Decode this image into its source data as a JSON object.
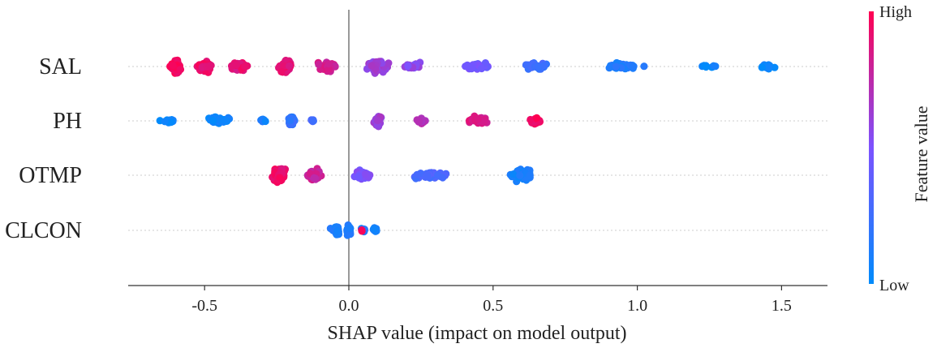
{
  "chart_data": {
    "type": "scatter",
    "subtype": "shap-beeswarm",
    "xlabel": "SHAP value (impact on model output)",
    "xlim": [
      -0.78,
      1.66
    ],
    "xticks": [
      -0.5,
      0.0,
      0.5,
      1.0,
      1.5
    ],
    "xtick_labels": [
      "-0.5",
      "0.0",
      "0.5",
      "1.0",
      "1.5"
    ],
    "zero_line": true,
    "grid": false,
    "features": [
      "SAL",
      "PH",
      "OTMP",
      "CLCON"
    ],
    "colorbar": {
      "title": "Feature value",
      "high_label": "High",
      "low_label": "Low",
      "high_color": "#ff0051",
      "low_color": "#008bfb"
    },
    "series": [
      {
        "feature": "SAL",
        "groups": [
          {
            "x": -0.6,
            "x_spread": 0.03,
            "count": 70,
            "color_value": 0.97
          },
          {
            "x": -0.5,
            "x_spread": 0.04,
            "count": 55,
            "color_value": 0.93
          },
          {
            "x": -0.38,
            "x_spread": 0.06,
            "count": 40,
            "color_value": 0.9
          },
          {
            "x": -0.22,
            "x_spread": 0.04,
            "count": 75,
            "color_value": 0.9
          },
          {
            "x": -0.08,
            "x_spread": 0.06,
            "count": 40,
            "color_value": 0.82
          },
          {
            "x": 0.1,
            "x_spread": 0.06,
            "count": 55,
            "color_value": 0.62
          },
          {
            "x": 0.22,
            "x_spread": 0.05,
            "count": 30,
            "color_value": 0.55
          },
          {
            "x": 0.45,
            "x_spread": 0.08,
            "count": 30,
            "color_value": 0.45
          },
          {
            "x": 0.65,
            "x_spread": 0.1,
            "count": 28,
            "color_value": 0.25
          },
          {
            "x": 0.95,
            "x_spread": 0.12,
            "count": 30,
            "color_value": 0.12
          },
          {
            "x": 1.25,
            "x_spread": 0.06,
            "count": 8,
            "color_value": 0.06
          },
          {
            "x": 1.45,
            "x_spread": 0.05,
            "count": 16,
            "color_value": 0.05
          }
        ]
      },
      {
        "feature": "PH",
        "groups": [
          {
            "x": -0.62,
            "x_spread": 0.05,
            "count": 14,
            "color_value": 0.04
          },
          {
            "x": -0.45,
            "x_spread": 0.06,
            "count": 35,
            "color_value": 0.07
          },
          {
            "x": -0.3,
            "x_spread": 0.03,
            "count": 8,
            "color_value": 0.1
          },
          {
            "x": -0.2,
            "x_spread": 0.02,
            "count": 45,
            "color_value": 0.2
          },
          {
            "x": -0.13,
            "x_spread": 0.02,
            "count": 6,
            "color_value": 0.28
          },
          {
            "x": 0.1,
            "x_spread": 0.02,
            "count": 45,
            "color_value": 0.62
          },
          {
            "x": 0.25,
            "x_spread": 0.04,
            "count": 12,
            "color_value": 0.72
          },
          {
            "x": 0.45,
            "x_spread": 0.06,
            "count": 40,
            "color_value": 0.85
          },
          {
            "x": 0.65,
            "x_spread": 0.04,
            "count": 22,
            "color_value": 0.96
          }
        ]
      },
      {
        "feature": "OTMP",
        "groups": [
          {
            "x": -0.24,
            "x_spread": 0.04,
            "count": 90,
            "color_value": 0.92
          },
          {
            "x": -0.12,
            "x_spread": 0.04,
            "count": 55,
            "color_value": 0.78
          },
          {
            "x": 0.05,
            "x_spread": 0.06,
            "count": 40,
            "color_value": 0.5
          },
          {
            "x": 0.28,
            "x_spread": 0.1,
            "count": 35,
            "color_value": 0.3
          },
          {
            "x": 0.6,
            "x_spread": 0.06,
            "count": 55,
            "color_value": 0.1
          }
        ]
      },
      {
        "feature": "CLCON",
        "groups": [
          {
            "x": -0.05,
            "x_spread": 0.03,
            "count": 10,
            "color_value": 0.12
          },
          {
            "x": -0.04,
            "x_spread": 0.012,
            "count": 45,
            "color_value": 0.1
          },
          {
            "x": 0.0,
            "x_spread": 0.012,
            "count": 40,
            "color_value": 0.1
          },
          {
            "x": 0.05,
            "x_spread": 0.015,
            "count": 14,
            "color_value": 0.15
          },
          {
            "x": 0.045,
            "x_spread": 0.005,
            "count": 2,
            "color_value": 0.97
          },
          {
            "x": 0.09,
            "x_spread": 0.015,
            "count": 10,
            "color_value": 0.1
          }
        ]
      }
    ]
  }
}
